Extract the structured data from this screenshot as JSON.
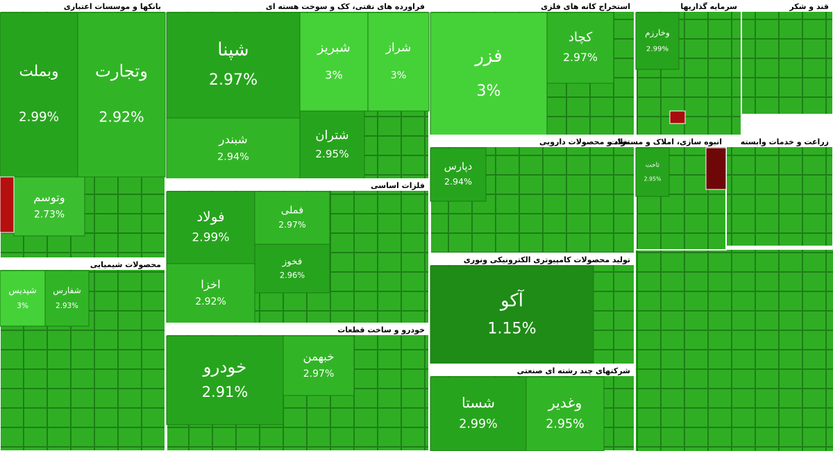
{
  "chart_data": {
    "type": "treemap",
    "sectors": [
      {
        "name": "بانکها و موسسات اعتباری",
        "categories": [
          "وبملت",
          "وتجارت",
          "وتوسم"
        ],
        "values": [
          2.99,
          2.92,
          2.73
        ],
        "value_labels": [
          "2.99%",
          "2.92%",
          "2.73%"
        ]
      },
      {
        "name": "فراورده های نفتی، کک و سوخت هسته ای",
        "categories": [
          "شپنا",
          "شبریز",
          "شراز",
          "شبندر",
          "شتران"
        ],
        "values": [
          2.97,
          3,
          3,
          2.94,
          2.95
        ],
        "value_labels": [
          "2.97%",
          "3%",
          "3%",
          "2.94%",
          "2.95%"
        ]
      },
      {
        "name": "فلزات اساسی",
        "categories": [
          "فولاد",
          "فملی",
          "فخوز",
          "اخزا"
        ],
        "values": [
          2.99,
          2.97,
          2.96,
          2.92
        ],
        "value_labels": [
          "2.99%",
          "2.97%",
          "2.96%",
          "2.92%"
        ]
      },
      {
        "name": "خودرو و ساخت قطعات",
        "categories": [
          "خودرو",
          "خبهمن"
        ],
        "values": [
          2.91,
          2.97
        ],
        "value_labels": [
          "2.91%",
          "2.97%"
        ]
      },
      {
        "name": "استخراج کانه های فلزی",
        "categories": [
          "فزر",
          "کچاد"
        ],
        "values": [
          3,
          2.97
        ],
        "value_labels": [
          "3%",
          "2.97%"
        ]
      },
      {
        "name": "مواد و محصولات دارویی",
        "categories": [
          "دپارس"
        ],
        "values": [
          2.94
        ],
        "value_labels": [
          "2.94%"
        ]
      },
      {
        "name": "تولید محصولات کامپیوتری الکترونیکی ونوری",
        "categories": [
          "آکو"
        ],
        "values": [
          1.15
        ],
        "value_labels": [
          "1.15%"
        ]
      },
      {
        "name": "شرکتهای چند رشته ای صنعتی",
        "categories": [
          "شستا",
          "وغدیر"
        ],
        "values": [
          2.99,
          2.95
        ],
        "value_labels": [
          "2.99%",
          "2.95%"
        ]
      },
      {
        "name": "سرمایه گذاریها",
        "categories": [
          "وخارزم"
        ],
        "values": [
          2.99
        ],
        "value_labels": [
          "2.99%"
        ]
      },
      {
        "name": "قند و شکر",
        "categories": [],
        "values": [],
        "value_labels": []
      },
      {
        "name": "انبوه سازی، املاک و مستغلات",
        "categories": [
          "ثاخت"
        ],
        "values": [
          2.95
        ],
        "value_labels": [
          "2.95%"
        ]
      },
      {
        "name": "زراعت و خدمات وابسته",
        "categories": [],
        "values": [],
        "value_labels": []
      },
      {
        "name": "محصولات شیمیایی",
        "categories": [
          "شپدیس",
          "شفارس"
        ],
        "values": [
          3,
          2.93
        ],
        "value_labels": [
          "3%",
          "2.93%"
        ]
      }
    ]
  }
}
